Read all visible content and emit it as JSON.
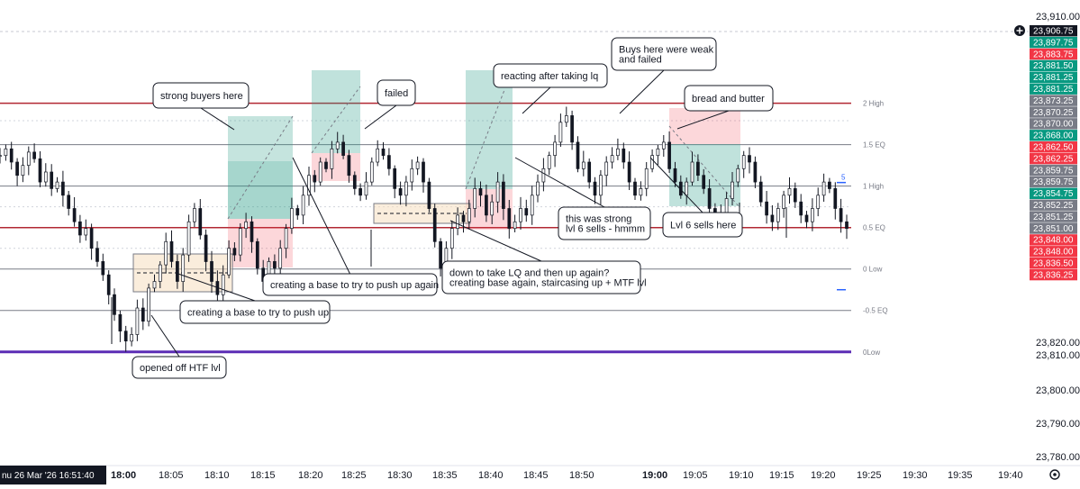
{
  "chart_data": {
    "type": "candlestick",
    "x": {
      "ticks": [
        "18:00",
        "18:05",
        "18:10",
        "18:15",
        "18:20",
        "18:25",
        "18:30",
        "18:35",
        "18:40",
        "18:45",
        "18:50",
        "19:00",
        "19:05",
        "19:10",
        "19:15",
        "19:20",
        "19:25",
        "19:30",
        "19:35",
        "19:40"
      ],
      "current_time": "nu 26 Mar '26   16:51:40"
    },
    "y": {
      "ticks": [
        "23,910.00",
        "23,820.00",
        "23,810.00",
        "23,800.00",
        "23,790.00",
        "23,780.00"
      ],
      "ylim": [
        23775,
        23910
      ]
    },
    "price_tags": [
      {
        "label": "23,906.75",
        "style": "current"
      },
      {
        "label": "23,897.75",
        "style": "green"
      },
      {
        "label": "23,883.75",
        "style": "red"
      },
      {
        "label": "23,881.50",
        "style": "green"
      },
      {
        "label": "23,881.25",
        "style": "green"
      },
      {
        "label": "23,881.25",
        "style": "green"
      },
      {
        "label": "23,873.25",
        "style": "gray"
      },
      {
        "label": "23,870.25",
        "style": "gray"
      },
      {
        "label": "23,870.00",
        "style": "gray"
      },
      {
        "label": "23,868.00",
        "style": "green"
      },
      {
        "label": "23,862.50",
        "style": "red"
      },
      {
        "label": "23,862.25",
        "style": "red"
      },
      {
        "label": "23,859.75",
        "style": "gray"
      },
      {
        "label": "23,859.75",
        "style": "gray"
      },
      {
        "label": "23,854.75",
        "style": "green"
      },
      {
        "label": "23,852.25",
        "style": "gray"
      },
      {
        "label": "23,851.25",
        "style": "gray"
      },
      {
        "label": "23,851.00",
        "style": "gray"
      },
      {
        "label": "23,848.00",
        "style": "red"
      },
      {
        "label": "23,848.00",
        "style": "red"
      },
      {
        "label": "23,836.50",
        "style": "red"
      },
      {
        "label": "23,836.25",
        "style": "red"
      }
    ],
    "levels": [
      {
        "label": "2 High",
        "price": 23883.75,
        "color": "#b22833"
      },
      {
        "label": "1.5 EQ",
        "price": 23871.25,
        "color": "#787b86"
      },
      {
        "label": "1 High",
        "price": 23858.75,
        "color": "#787b86"
      },
      {
        "label": "0.5 EQ",
        "price": 23846.25,
        "color": "#b22833"
      },
      {
        "label": "0 Low",
        "price": 23833.75,
        "color": "#787b86"
      },
      {
        "label": "-0.5 EQ",
        "price": 23821.25,
        "color": "#787b86"
      },
      {
        "label": "0Low",
        "price": 23808.75,
        "color": "#5b2db5"
      }
    ],
    "level_markers": [
      "5"
    ],
    "annotations": [
      "strong buyers here",
      "failed",
      "reacting after taking lq",
      "Buys here were weak\nand failed",
      "bread and butter",
      "this was strong\nlvl 6 sells - hmmm",
      "Lvl 6 sells here",
      "down to take LQ and then up again?\ncreating base again, staircasing up + MTF lvl",
      "creating a base to try to push up again",
      "creating a base to try to push up",
      "opened off HTF lvl"
    ],
    "prices": [
      23868,
      23870,
      23866,
      23862,
      23865,
      23869,
      23867,
      23860,
      23863,
      23858,
      23860,
      23856,
      23852,
      23848,
      23844,
      23846,
      23840,
      23836,
      23832,
      23826,
      23820,
      23815,
      23812,
      23814,
      23822,
      23818,
      23828,
      23830,
      23835,
      23842,
      23836,
      23830,
      23838,
      23848,
      23852,
      23844,
      23836,
      23830,
      23826,
      23832,
      23840,
      23838,
      23846,
      23848,
      23842,
      23834,
      23830,
      23836,
      23834,
      23840,
      23846,
      23852,
      23850,
      23856,
      23862,
      23860,
      23866,
      23864,
      23870,
      23872,
      23868,
      23862,
      23858,
      23856,
      23860,
      23866,
      23870,
      23868,
      23864,
      23858,
      23856,
      23860,
      23864,
      23866,
      23860,
      23852,
      23842,
      23834,
      23840,
      23846,
      23850,
      23848,
      23852,
      23858,
      23856,
      23850,
      23854,
      23860,
      23852,
      23846,
      23848,
      23852,
      23850,
      23856,
      23860,
      23864,
      23868,
      23872,
      23878,
      23880,
      23872,
      23864,
      23866,
      23860,
      23856,
      23862,
      23866,
      23868,
      23870,
      23866,
      23860,
      23856,
      23858,
      23864,
      23868,
      23870,
      23872,
      23864,
      23860,
      23856,
      23860,
      23866,
      23862,
      23858,
      23852,
      23848,
      23850,
      23855,
      23860,
      23864,
      23868,
      23866,
      23860,
      23854,
      23850,
      23848,
      23852,
      23856,
      23858,
      23854,
      23850,
      23848,
      23852,
      23856,
      23860,
      23858,
      23852,
      23848,
      23846
    ]
  }
}
